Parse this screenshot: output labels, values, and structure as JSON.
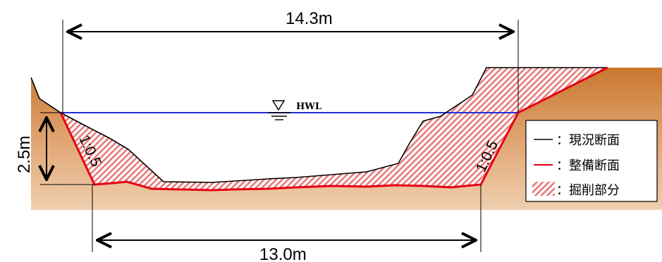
{
  "dimensions": {
    "top_width": "14.3m",
    "bottom_width": "13.0m",
    "depth": "2.5m"
  },
  "water_level": {
    "label": "HWL"
  },
  "slopes": {
    "left": "1:0.5",
    "right": "1:0.5"
  },
  "legend": {
    "existing": "：現況断面",
    "planned": "：整備断面",
    "excavation": "：掘削部分"
  },
  "colors": {
    "earth_top": "#c9772e",
    "earth_bottom": "#f0cfae",
    "existing_line": "#000000",
    "planned_line": "#e60012",
    "water_line": "#1f2fd6",
    "hatch": "#e87a7a"
  }
}
